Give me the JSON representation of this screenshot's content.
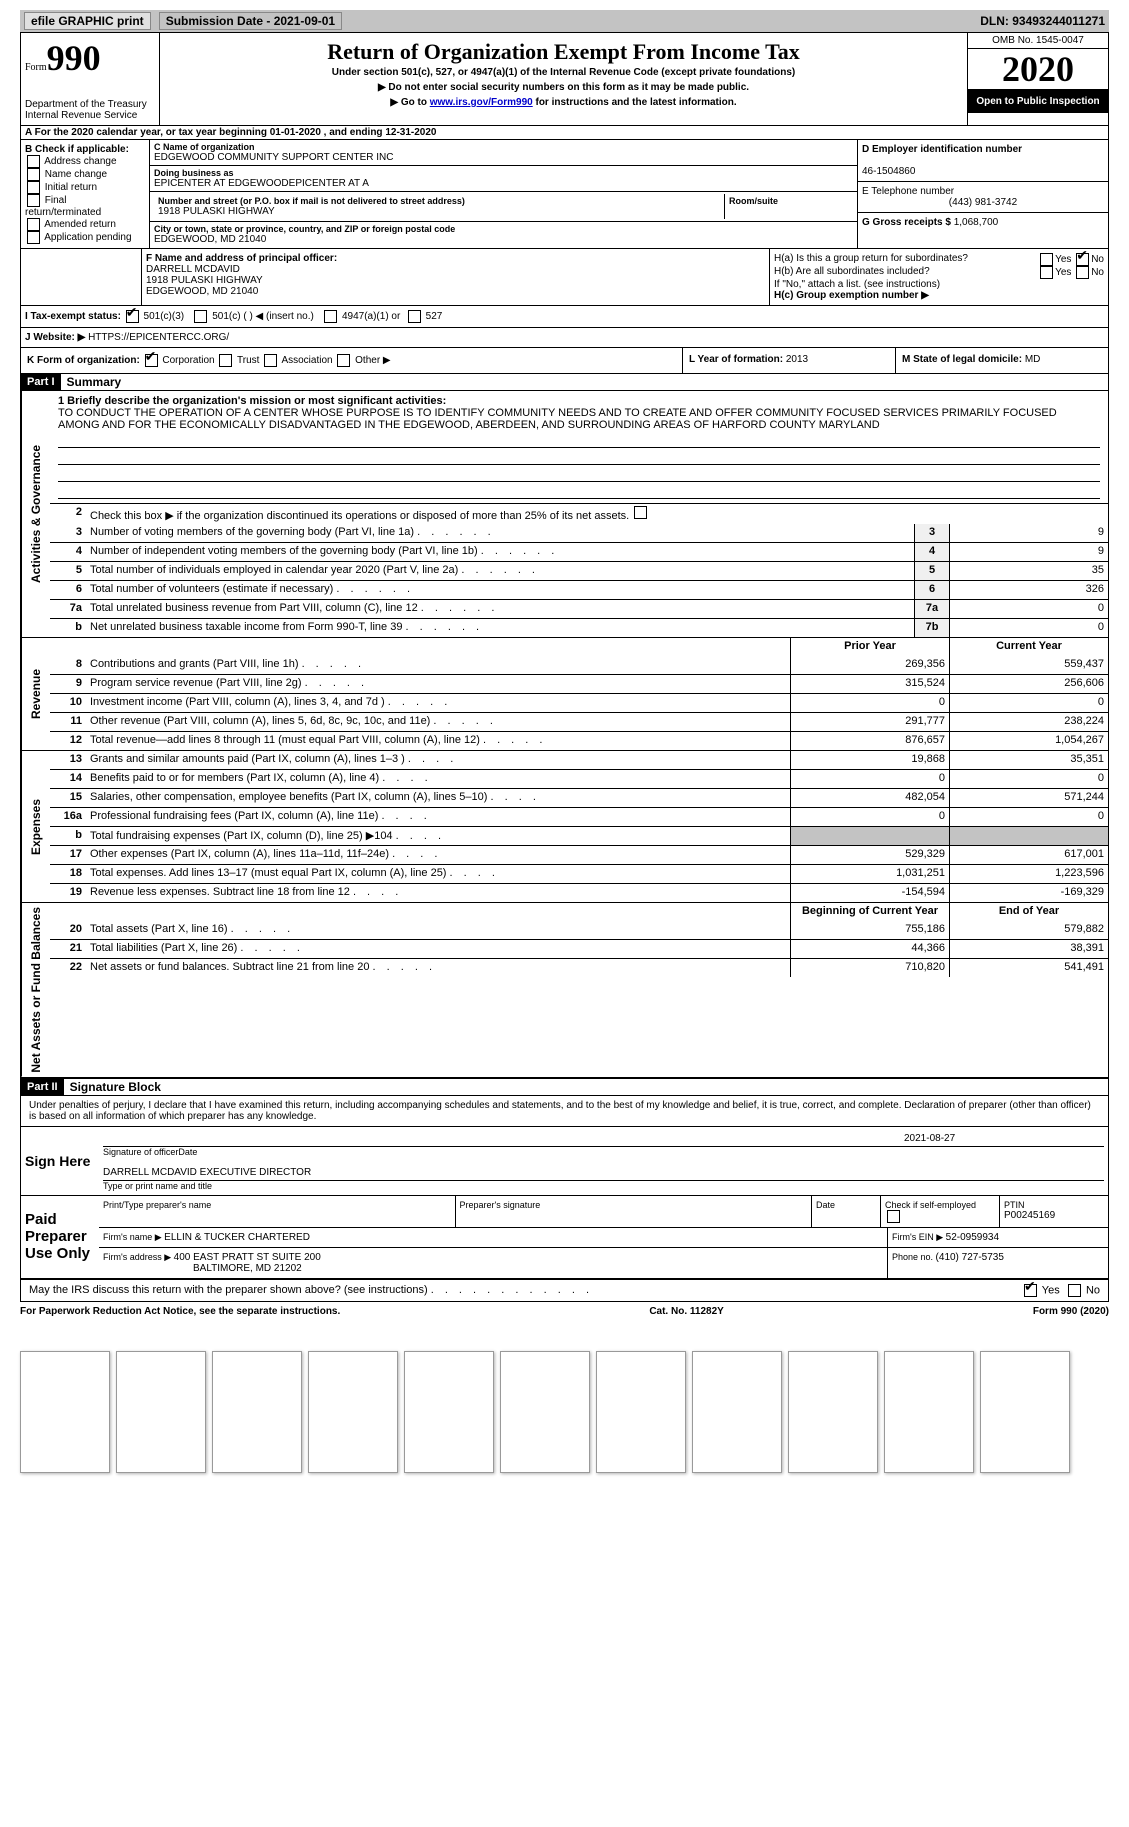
{
  "topbar": {
    "efile": "efile GRAPHIC print",
    "submission_label": "Submission Date - 2021-09-01",
    "dln": "DLN: 93493244011271"
  },
  "header": {
    "form_word": "Form",
    "form_num": "990",
    "dept1": "Department of the Treasury",
    "dept2": "Internal Revenue Service",
    "title": "Return of Organization Exempt From Income Tax",
    "sub1": "Under section 501(c), 527, or 4947(a)(1) of the Internal Revenue Code (except private foundations)",
    "sub2": "▶ Do not enter social security numbers on this form as it may be made public.",
    "sub3_pre": "▶ Go to ",
    "sub3_link": "www.irs.gov/Form990",
    "sub3_post": " for instructions and the latest information.",
    "omb": "OMB No. 1545-0047",
    "year": "2020",
    "open": "Open to Public Inspection"
  },
  "row_a": "A   For the 2020 calendar year, or tax year beginning 01-01-2020    , and ending 12-31-2020",
  "section_b": {
    "b_title": "B Check if applicable:",
    "b_items": [
      "Address change",
      "Name change",
      "Initial return",
      "Final return/terminated",
      "Amended return",
      "Application pending"
    ],
    "c_label": "C Name of organization",
    "c_name": "EDGEWOOD COMMUNITY SUPPORT CENTER INC",
    "dba_label": "Doing business as",
    "dba": "EPICENTER AT EDGEWOODEPICENTER AT A",
    "street_label": "Number and street (or P.O. box if mail is not delivered to street address)",
    "room_label": "Room/suite",
    "street": "1918 PULASKI HIGHWAY",
    "city_label": "City or town, state or province, country, and ZIP or foreign postal code",
    "city": "EDGEWOOD, MD  21040",
    "d_label": "D Employer identification number",
    "d_val": "46-1504860",
    "e_label": "E Telephone number",
    "e_val": "(443) 981-3742",
    "g_label": "G Gross receipts $ ",
    "g_val": "1,068,700"
  },
  "section_f": {
    "f_label": "F Name and address of principal officer:",
    "f_name": "DARRELL MCDAVID",
    "f_street": "1918 PULASKI HIGHWAY",
    "f_city": "EDGEWOOD, MD  21040",
    "ha_label": "H(a)  Is this a group return for subordinates?",
    "hb_label": "H(b)  Are all subordinates included?",
    "h_note": "If \"No,\" attach a list. (see instructions)",
    "hc_label": "H(c)  Group exemption number ▶",
    "yes": "Yes",
    "no": "No"
  },
  "row_i": {
    "label": "I    Tax-exempt status:",
    "opt1": "501(c)(3)",
    "opt2": "501(c) (  ) ◀ (insert no.)",
    "opt3": "4947(a)(1) or",
    "opt4": "527"
  },
  "row_j": {
    "label": "J   Website: ▶ ",
    "val": "HTTPS://EPICENTERCC.ORG/"
  },
  "row_k": {
    "k_label": "K Form of organization:",
    "k_corp": "Corporation",
    "k_trust": "Trust",
    "k_assoc": "Association",
    "k_other": "Other ▶",
    "l_label": "L Year of formation: ",
    "l_val": "2013",
    "m_label": "M State of legal domicile: ",
    "m_val": "MD"
  },
  "part1": {
    "header": "Part I",
    "title": "Summary",
    "line1_label": "1   Briefly describe the organization's mission or most significant activities:",
    "mission": "TO CONDUCT THE OPERATION OF A CENTER WHOSE PURPOSE IS TO IDENTIFY COMMUNITY NEEDS AND TO CREATE AND OFFER COMMUNITY FOCUSED SERVICES PRIMARILY FOCUSED AMONG AND FOR THE ECONOMICALLY DISADVANTAGED IN THE EDGEWOOD, ABERDEEN, AND SURROUNDING AREAS OF HARFORD COUNTY MARYLAND",
    "line2": "Check this box ▶       if the organization discontinued its operations or disposed of more than 25% of its net assets."
  },
  "sides": {
    "gov": "Activities & Governance",
    "rev": "Revenue",
    "exp": "Expenses",
    "net": "Net Assets or Fund Balances"
  },
  "gov_rows": [
    {
      "n": "3",
      "d": "Number of voting members of the governing body (Part VI, line 1a)",
      "ln": "3",
      "v": "9"
    },
    {
      "n": "4",
      "d": "Number of independent voting members of the governing body (Part VI, line 1b)",
      "ln": "4",
      "v": "9"
    },
    {
      "n": "5",
      "d": "Total number of individuals employed in calendar year 2020 (Part V, line 2a)",
      "ln": "5",
      "v": "35"
    },
    {
      "n": "6",
      "d": "Total number of volunteers (estimate if necessary)",
      "ln": "6",
      "v": "326"
    },
    {
      "n": "7a",
      "d": "Total unrelated business revenue from Part VIII, column (C), line 12",
      "ln": "7a",
      "v": "0"
    },
    {
      "n": "b",
      "d": "Net unrelated business taxable income from Form 990-T, line 39",
      "ln": "7b",
      "v": "0"
    }
  ],
  "col_headers": {
    "prior": "Prior Year",
    "current": "Current Year"
  },
  "rev_rows": [
    {
      "n": "8",
      "d": "Contributions and grants (Part VIII, line 1h)",
      "p": "269,356",
      "c": "559,437"
    },
    {
      "n": "9",
      "d": "Program service revenue (Part VIII, line 2g)",
      "p": "315,524",
      "c": "256,606"
    },
    {
      "n": "10",
      "d": "Investment income (Part VIII, column (A), lines 3, 4, and 7d )",
      "p": "0",
      "c": "0"
    },
    {
      "n": "11",
      "d": "Other revenue (Part VIII, column (A), lines 5, 6d, 8c, 9c, 10c, and 11e)",
      "p": "291,777",
      "c": "238,224"
    },
    {
      "n": "12",
      "d": "Total revenue—add lines 8 through 11 (must equal Part VIII, column (A), line 12)",
      "p": "876,657",
      "c": "1,054,267"
    }
  ],
  "exp_rows": [
    {
      "n": "13",
      "d": "Grants and similar amounts paid (Part IX, column (A), lines 1–3 )",
      "p": "19,868",
      "c": "35,351"
    },
    {
      "n": "14",
      "d": "Benefits paid to or for members (Part IX, column (A), line 4)",
      "p": "0",
      "c": "0"
    },
    {
      "n": "15",
      "d": "Salaries, other compensation, employee benefits (Part IX, column (A), lines 5–10)",
      "p": "482,054",
      "c": "571,244"
    },
    {
      "n": "16a",
      "d": "Professional fundraising fees (Part IX, column (A), line 11e)",
      "p": "0",
      "c": "0"
    },
    {
      "n": "b",
      "d": "Total fundraising expenses (Part IX, column (D), line 25) ▶104",
      "p": "",
      "c": "",
      "shaded": true
    },
    {
      "n": "17",
      "d": "Other expenses (Part IX, column (A), lines 11a–11d, 11f–24e)",
      "p": "529,329",
      "c": "617,001"
    },
    {
      "n": "18",
      "d": "Total expenses. Add lines 13–17 (must equal Part IX, column (A), line 25)",
      "p": "1,031,251",
      "c": "1,223,596"
    },
    {
      "n": "19",
      "d": "Revenue less expenses. Subtract line 18 from line 12",
      "p": "-154,594",
      "c": "-169,329"
    }
  ],
  "net_headers": {
    "begin": "Beginning of Current Year",
    "end": "End of Year"
  },
  "net_rows": [
    {
      "n": "20",
      "d": "Total assets (Part X, line 16)",
      "p": "755,186",
      "c": "579,882"
    },
    {
      "n": "21",
      "d": "Total liabilities (Part X, line 26)",
      "p": "44,366",
      "c": "38,391"
    },
    {
      "n": "22",
      "d": "Net assets or fund balances. Subtract line 21 from line 20",
      "p": "710,820",
      "c": "541,491"
    }
  ],
  "part2": {
    "header": "Part II",
    "title": "Signature Block",
    "declare": "Under penalties of perjury, I declare that I have examined this return, including accompanying schedules and statements, and to the best of my knowledge and belief, it is true, correct, and complete. Declaration of preparer (other than officer) is based on all information of which preparer has any knowledge.",
    "sign_here": "Sign Here",
    "sig_officer": "Signature of officer",
    "date_label": "Date",
    "sig_date": "2021-08-27",
    "type_name": "DARRELL MCDAVID  EXECUTIVE DIRECTOR",
    "type_label": "Type or print name and title",
    "paid_prep": "Paid Preparer Use Only",
    "prep_name_label": "Print/Type preparer's name",
    "prep_sig_label": "Preparer's signature",
    "check_self": "Check        if self-employed",
    "ptin_label": "PTIN",
    "ptin": "P00245169",
    "firm_name_label": "Firm's name   ▶ ",
    "firm_name": "ELLIN & TUCKER CHARTERED",
    "firm_ein_label": "Firm's EIN ▶ ",
    "firm_ein": "52-0959934",
    "firm_addr_label": "Firm's address ▶ ",
    "firm_addr1": "400 EAST PRATT ST SUITE 200",
    "firm_addr2": "BALTIMORE, MD  21202",
    "phone_label": "Phone no. ",
    "phone": "(410) 727-5735",
    "discuss": "May the IRS discuss this return with the preparer shown above? (see instructions)"
  },
  "footer": {
    "left": "For Paperwork Reduction Act Notice, see the separate instructions.",
    "mid": "Cat. No. 11282Y",
    "right": "Form 990 (2020)"
  }
}
